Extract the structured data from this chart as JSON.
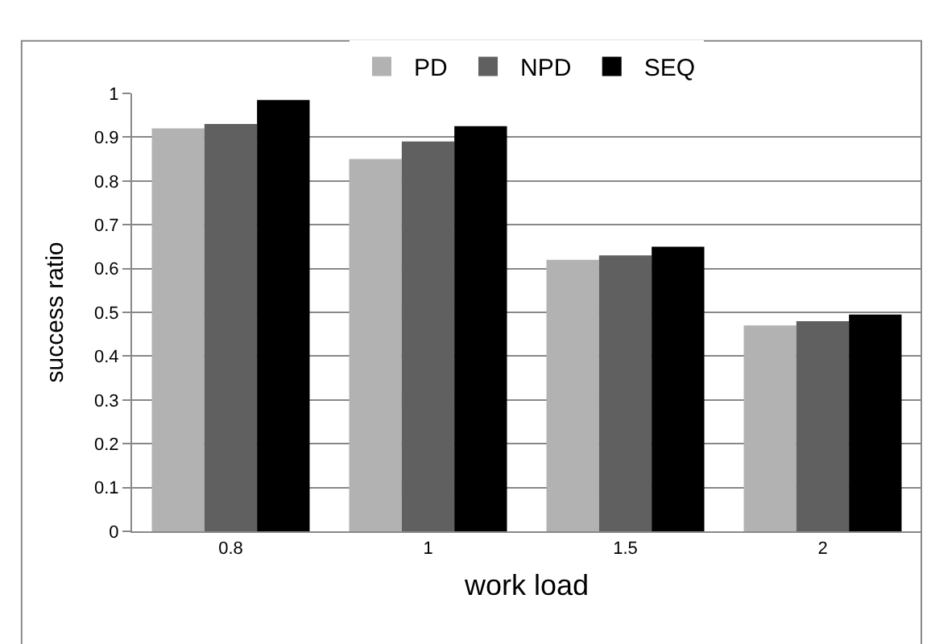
{
  "chart_data": {
    "type": "bar",
    "xlabel": "work load",
    "ylabel": "success ratio",
    "categories": [
      "0.8",
      "1",
      "1.5",
      "2"
    ],
    "series": [
      {
        "name": "PD",
        "color": "#b2b2b2",
        "values": [
          0.92,
          0.85,
          0.62,
          0.47
        ]
      },
      {
        "name": "NPD",
        "color": "#606060",
        "values": [
          0.93,
          0.89,
          0.63,
          0.48
        ]
      },
      {
        "name": "SEQ",
        "color": "#000000",
        "values": [
          0.985,
          0.925,
          0.65,
          0.495
        ]
      }
    ],
    "ylim": [
      0,
      1
    ],
    "yticks": [
      0,
      0.1,
      0.2,
      0.3,
      0.4,
      0.5,
      0.6,
      0.7,
      0.8,
      0.9,
      1
    ],
    "grid": "y",
    "legend": "top"
  }
}
